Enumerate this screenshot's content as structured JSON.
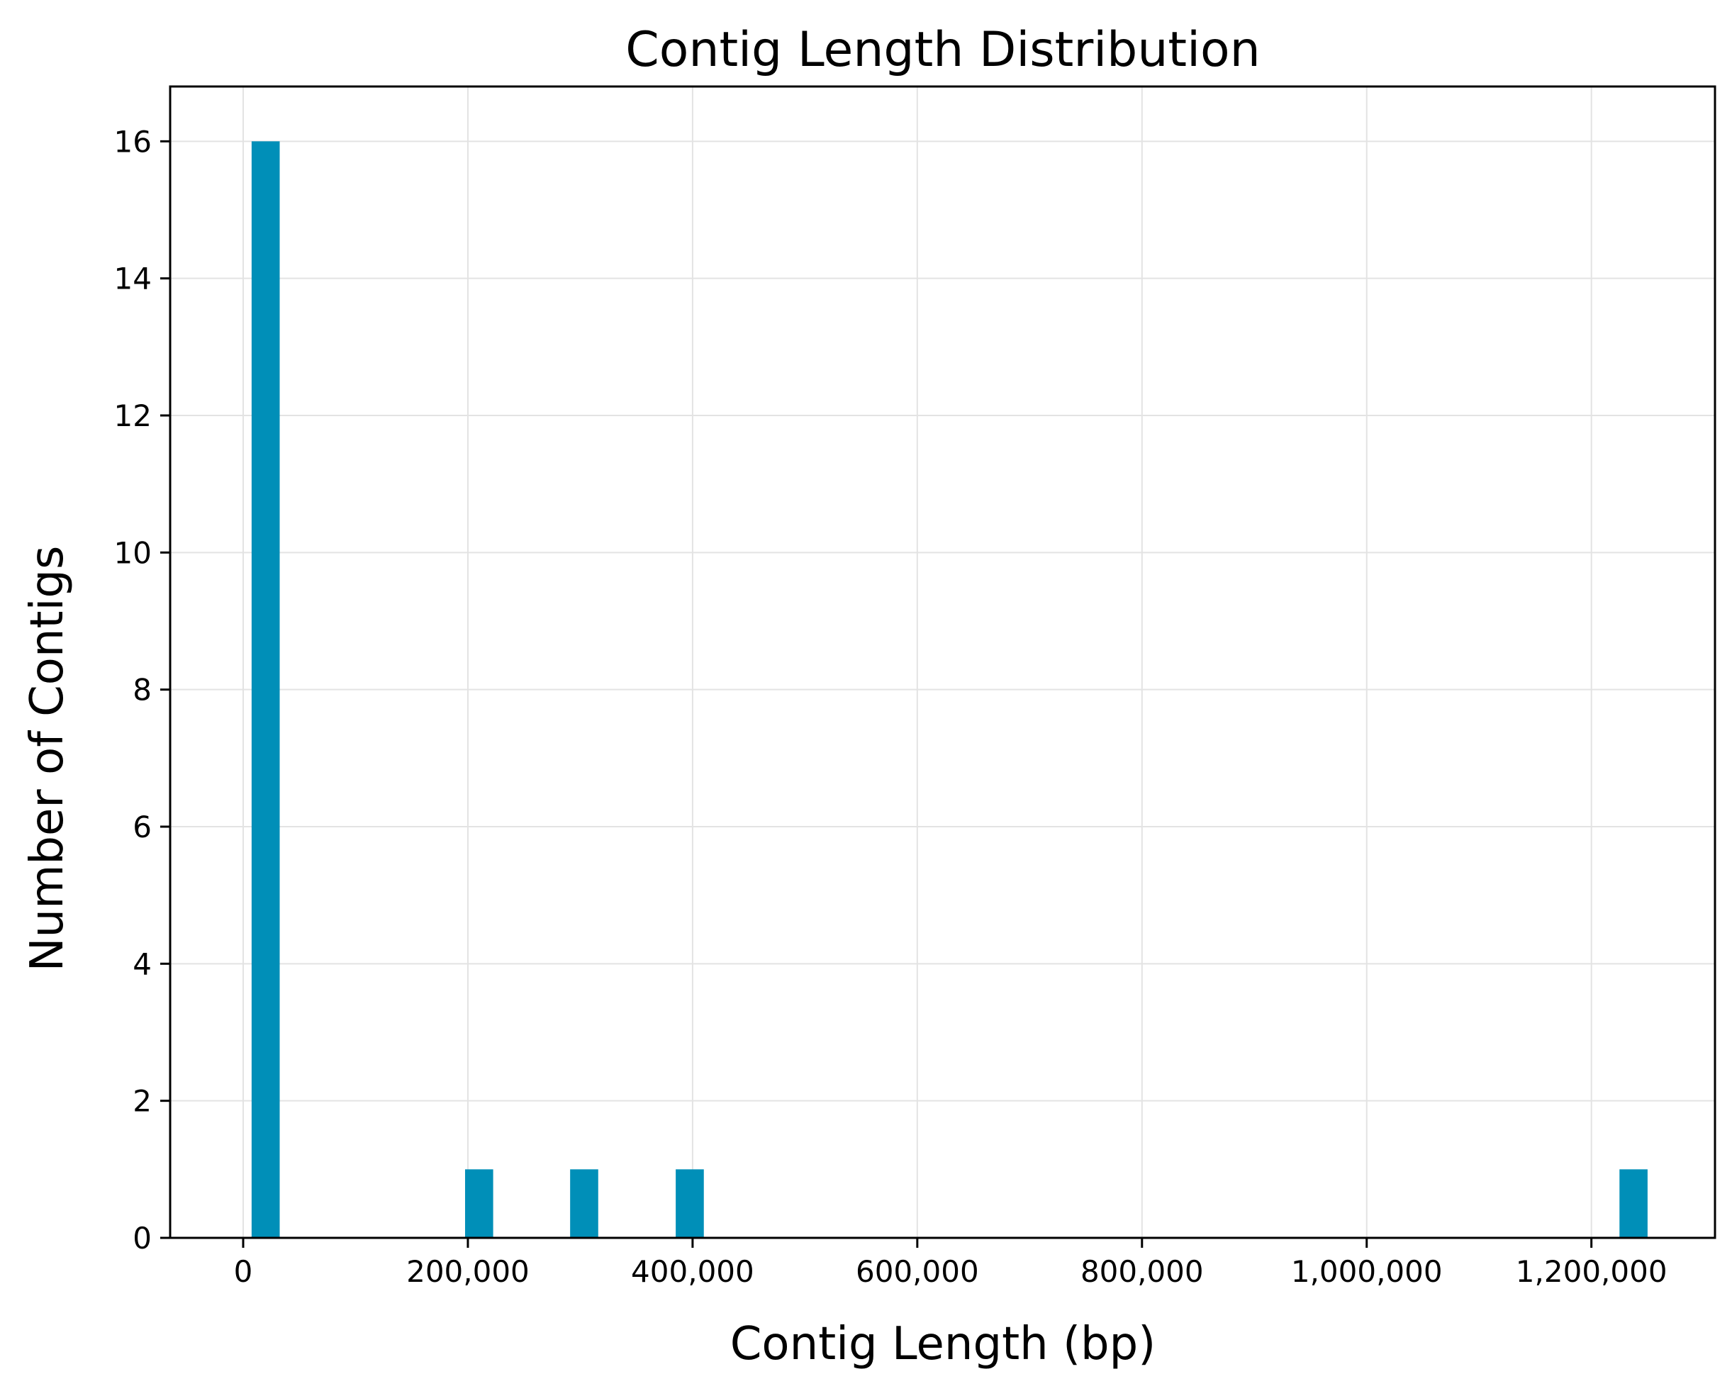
{
  "chart_data": {
    "type": "bar",
    "title": "Contig Length Distribution",
    "xlabel": "Contig Length (bp)",
    "ylabel": "Number of Contigs",
    "xlim": [
      -65000,
      1310000
    ],
    "ylim": [
      0,
      16.8
    ],
    "grid": true,
    "bar_color": "#008fb8",
    "bin_width": 25000,
    "bins": [
      {
        "x_start": 7500,
        "x_end": 32500,
        "count": 16
      },
      {
        "x_start": 197500,
        "x_end": 222500,
        "count": 1
      },
      {
        "x_start": 291000,
        "x_end": 316000,
        "count": 1
      },
      {
        "x_start": 385000,
        "x_end": 410000,
        "count": 1
      },
      {
        "x_start": 1225000,
        "x_end": 1250000,
        "count": 1
      }
    ],
    "x_ticks": [
      {
        "value": 0,
        "label": "0"
      },
      {
        "value": 200000,
        "label": "200,000"
      },
      {
        "value": 400000,
        "label": "400,000"
      },
      {
        "value": 600000,
        "label": "600,000"
      },
      {
        "value": 800000,
        "label": "800,000"
      },
      {
        "value": 1000000,
        "label": "1,000,000"
      },
      {
        "value": 1200000,
        "label": "1,200,000"
      }
    ],
    "y_ticks": [
      {
        "value": 0,
        "label": "0"
      },
      {
        "value": 2,
        "label": "2"
      },
      {
        "value": 4,
        "label": "4"
      },
      {
        "value": 6,
        "label": "6"
      },
      {
        "value": 8,
        "label": "8"
      },
      {
        "value": 10,
        "label": "10"
      },
      {
        "value": 12,
        "label": "12"
      },
      {
        "value": 14,
        "label": "14"
      },
      {
        "value": 16,
        "label": "16"
      }
    ]
  }
}
